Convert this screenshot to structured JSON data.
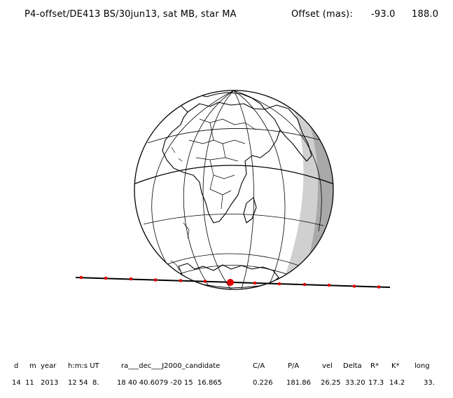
{
  "header": {
    "title": "P4-offset/DE413 BS/30jun13, sat MB, star MA",
    "offset_label": "Offset (mas):",
    "offset_x": "-93.0",
    "offset_y": "188.0"
  },
  "table": {
    "headers": [
      "d",
      "m",
      "year",
      "h:m:s UT",
      "ra___dec___J2000_candidate",
      "C/A",
      "P/A",
      "vel",
      "Delta",
      "R*",
      "K*",
      "long"
    ],
    "values": [
      "14",
      "11",
      "2013",
      "12 54  8.",
      "18 40 40.6079 -20 15  16.865",
      "0.226",
      "181.86",
      "26.25",
      "33.20",
      "17.3",
      "14.2",
      "33."
    ]
  },
  "colors": {
    "track": "#000000",
    "track_points": "#e00000",
    "shadow_light": "#cfcfcf",
    "shadow_dark": "#a8a8a8"
  }
}
